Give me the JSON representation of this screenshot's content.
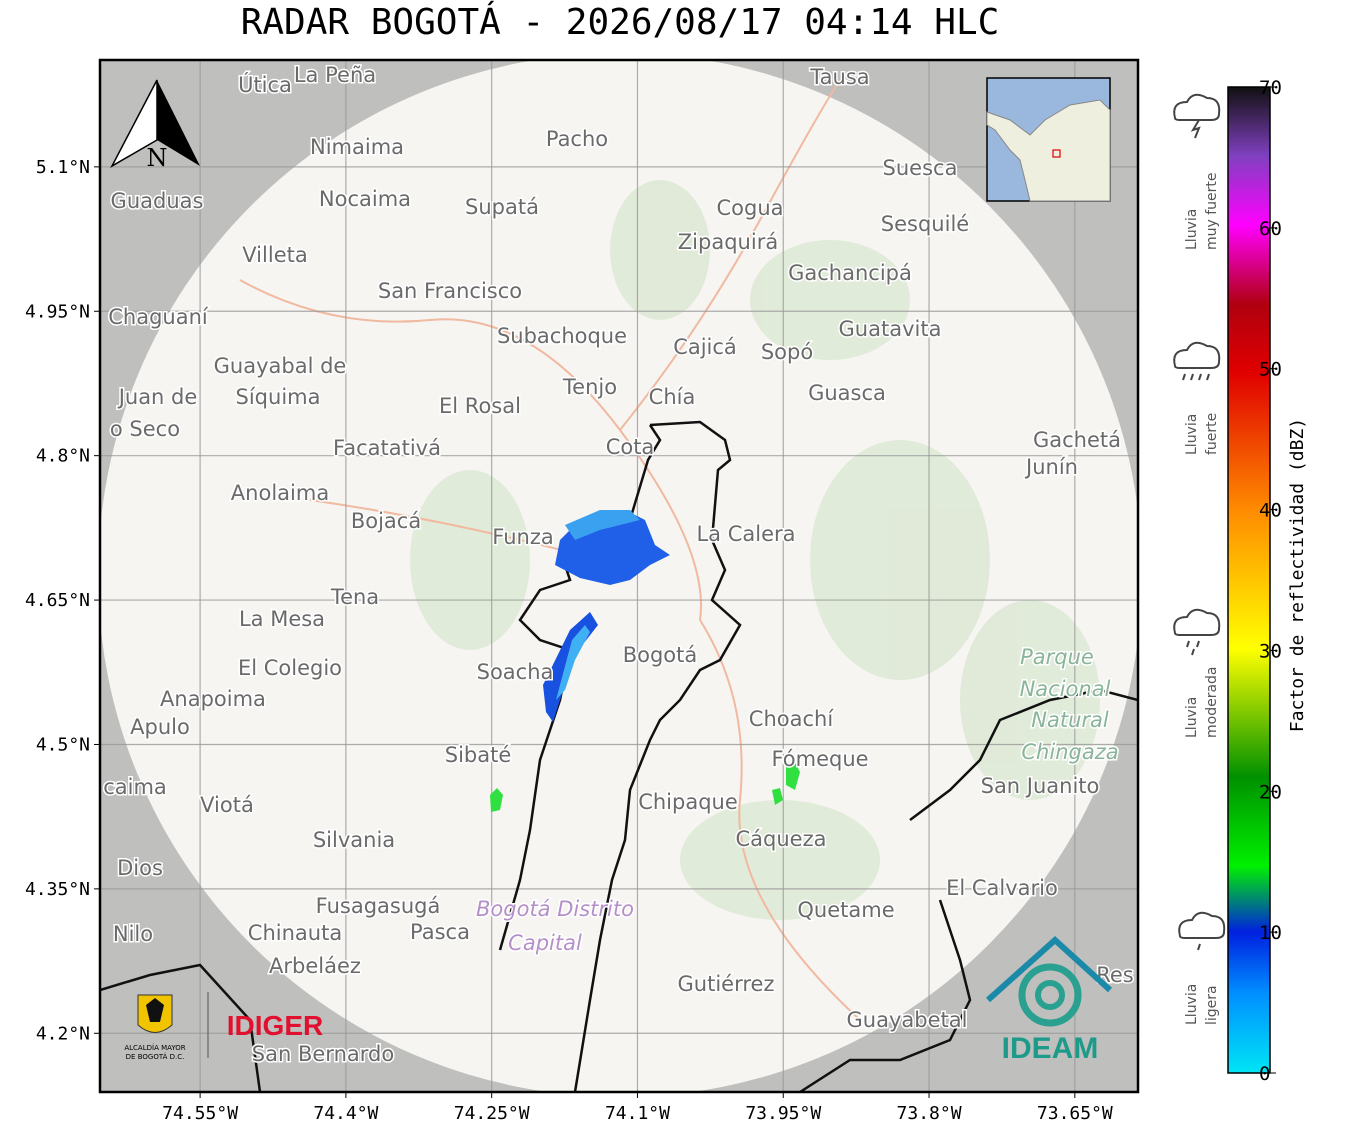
{
  "header": {
    "title": "RADAR BOGOTÁ - 2026/08/17 04:14 HLC"
  },
  "map": {
    "xlim": [
      -74.653,
      -73.585
    ],
    "ylim": [
      4.139,
      5.211
    ],
    "xticks": [
      {
        "value": -74.55,
        "label": "74.55°W"
      },
      {
        "value": -74.4,
        "label": "74.4°W"
      },
      {
        "value": -74.25,
        "label": "74.25°W"
      },
      {
        "value": -74.1,
        "label": "74.1°W"
      },
      {
        "value": -73.95,
        "label": "73.95°W"
      },
      {
        "value": -73.8,
        "label": "73.8°W"
      },
      {
        "value": -73.65,
        "label": "73.65°W"
      }
    ],
    "yticks": [
      {
        "value": 5.1,
        "label": "5.1°N"
      },
      {
        "value": 4.95,
        "label": "4.95°N"
      },
      {
        "value": 4.8,
        "label": "4.8°N"
      },
      {
        "value": 4.65,
        "label": "4.65°N"
      },
      {
        "value": 4.5,
        "label": "4.5°N"
      },
      {
        "value": 4.35,
        "label": "4.35°N"
      },
      {
        "value": 4.2,
        "label": "4.2°N"
      }
    ],
    "grid": true,
    "north": "N",
    "places": [
      "Útica",
      "La Peña",
      "Tausa",
      "Nimaima",
      "Pacho",
      "Suesca",
      "Guaduas",
      "Nocaima",
      "Supatá",
      "Cogua",
      "Zipaquirá",
      "Sesquilé",
      "Villeta",
      "Gachancipá",
      "San Francisco",
      "Chaguaní",
      "Subachoque",
      "Cajicá",
      "Sopó",
      "Guatavita",
      "Guayabal de",
      "Síquima",
      "Tenjo",
      "Chía",
      "Guasca",
      "Juan de",
      "o Seco",
      "El Rosal",
      "Facatativá",
      "Cota",
      "Gachetá",
      "Junín",
      "Anolaima",
      "Bojacá",
      "Funza",
      "La Calera",
      "Tena",
      "La Mesa",
      "Bogotá",
      "Soacha",
      "El Colegio",
      "Anapoima",
      "Apulo",
      "Parque",
      "Nacional",
      "Natural",
      "Chingaza",
      "Choachí",
      "Fómeque",
      "Sibaté",
      "San Juanito",
      "caima",
      "Viotá",
      "Chipaque",
      "Silvania",
      "Cáqueza",
      "Dios",
      "El Calvario",
      "Fusagasugá",
      "Bogotá Distrito",
      "Quetame",
      "Nilo",
      "Chinauta",
      "Pasca",
      "Capital",
      "Arbeláez",
      "Gutiérrez",
      "Res",
      "Guayabetal",
      "San Bernardo"
    ],
    "logos": {
      "idiger": "IDIGER",
      "ideam": "IDEAM",
      "alcaldia": [
        "ALCALDÍA MAYOR",
        "DE BOGOTÁ D.C."
      ]
    }
  },
  "colorbar": {
    "label": "Factor de reflectividad (dBZ)",
    "lim": [
      0,
      70
    ],
    "ticks": [
      0,
      10,
      20,
      30,
      40,
      50,
      60,
      70
    ],
    "categories": [
      [
        "Lluvia",
        "muy fuerte"
      ],
      [
        "Lluvia",
        "fuerte"
      ],
      [
        "Lluvia",
        "moderada"
      ],
      [
        "Lluvia",
        "ligera"
      ]
    ]
  }
}
